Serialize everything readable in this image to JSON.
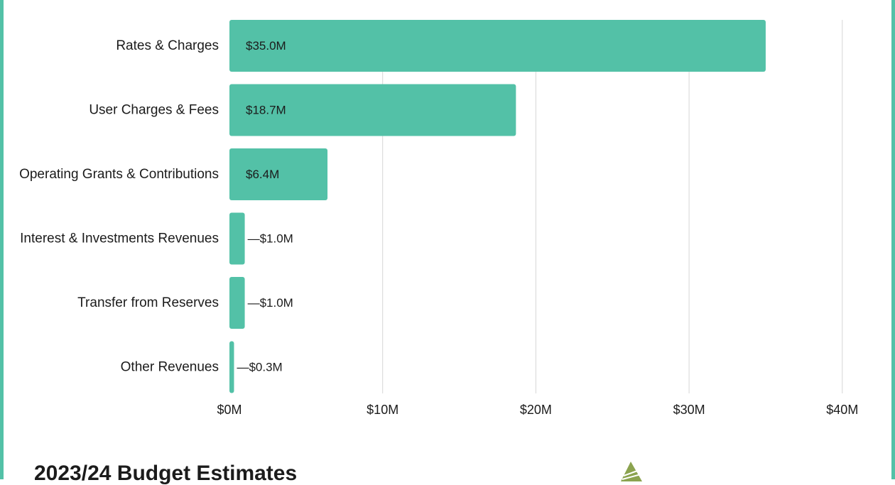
{
  "colors": {
    "bar": "#53c1a7",
    "frame": "#53c1a7",
    "grid": "#d6d6d6",
    "text": "#1b1b1b",
    "logo": "#8ba34f"
  },
  "footer": {
    "title": "2023/24 Budget Estimates",
    "logo_icon": "leaf-logo-icon"
  },
  "chart_data": {
    "type": "bar",
    "orientation": "horizontal",
    "categories": [
      "Rates & Charges",
      "User Charges & Fees",
      "Operating Grants & Contributions",
      "Interest & Investments Revenues",
      "Transfer from Reserves",
      "Other Revenues"
    ],
    "values": [
      35.0,
      18.7,
      6.4,
      1.0,
      1.0,
      0.3
    ],
    "data_labels": [
      "$35.0M",
      "$18.7M",
      "$6.4M",
      "$1.0M",
      "$1.0M",
      "$0.3M"
    ],
    "x_ticks": [
      0,
      10,
      20,
      30,
      40
    ],
    "x_tick_labels": [
      "$0M",
      "$10M",
      "$20M",
      "$30M",
      "$40M"
    ],
    "xlim": [
      0,
      40
    ],
    "unit": "$M",
    "grid": true,
    "legend": "none"
  }
}
